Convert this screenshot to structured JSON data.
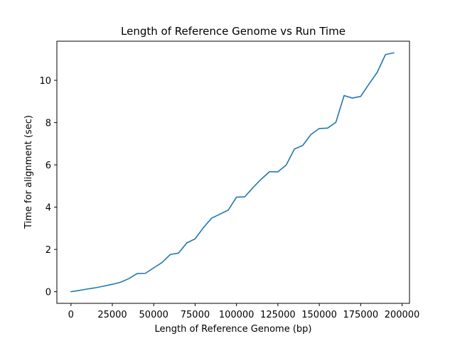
{
  "chart_data": {
    "type": "line",
    "title": "Length of Reference Genome vs Run Time",
    "xlabel": "Length of Reference Genome (bp)",
    "ylabel": "Time for alignment (sec)",
    "xlim": [
      -8500,
      204500
    ],
    "ylim": [
      -0.55,
      11.85
    ],
    "xticks": [
      0,
      25000,
      50000,
      75000,
      100000,
      125000,
      150000,
      175000,
      200000
    ],
    "yticks": [
      0,
      2,
      4,
      6,
      8,
      10
    ],
    "grid": false,
    "series": [
      {
        "color": "#1f77b4",
        "x": [
          0,
          5000,
          10000,
          15000,
          20000,
          25000,
          30000,
          35000,
          40000,
          45000,
          50000,
          55000,
          60000,
          65000,
          70000,
          75000,
          80000,
          85000,
          90000,
          95000,
          100000,
          105000,
          110000,
          115000,
          120000,
          125000,
          130000,
          135000,
          140000,
          145000,
          150000,
          155000,
          160000,
          165000,
          170000,
          175000,
          180000,
          185000,
          190000,
          195000
        ],
        "y": [
          0.0,
          0.06,
          0.13,
          0.19,
          0.27,
          0.35,
          0.45,
          0.62,
          0.86,
          0.87,
          1.13,
          1.38,
          1.76,
          1.83,
          2.31,
          2.5,
          3.03,
          3.48,
          3.67,
          3.86,
          4.47,
          4.49,
          4.93,
          5.33,
          5.68,
          5.67,
          5.99,
          6.75,
          6.92,
          7.44,
          7.72,
          7.74,
          8.01,
          9.28,
          9.16,
          9.24,
          9.82,
          10.38,
          11.22,
          11.3
        ]
      }
    ]
  }
}
